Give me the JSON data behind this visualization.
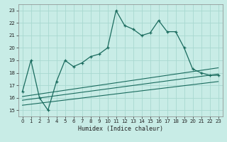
{
  "title": "",
  "xlabel": "Humidex (Indice chaleur)",
  "background_color": "#c8ece6",
  "grid_color": "#a8d8d0",
  "line_color": "#1a6b5e",
  "xlim": [
    -0.5,
    23.5
  ],
  "ylim": [
    14.5,
    23.5
  ],
  "yticks": [
    15,
    16,
    17,
    18,
    19,
    20,
    21,
    22,
    23
  ],
  "xticks": [
    0,
    1,
    2,
    3,
    4,
    5,
    6,
    7,
    8,
    9,
    10,
    11,
    12,
    13,
    14,
    15,
    16,
    17,
    18,
    19,
    20,
    21,
    22,
    23
  ],
  "main_x": [
    0,
    1,
    2,
    3,
    4,
    5,
    6,
    7,
    8,
    9,
    10,
    11,
    12,
    13,
    14,
    15,
    16,
    17,
    18,
    19,
    20,
    21,
    22,
    23
  ],
  "main_y": [
    16.5,
    19.0,
    16.0,
    15.0,
    17.3,
    19.0,
    18.5,
    18.8,
    19.3,
    19.5,
    20.0,
    23.0,
    21.8,
    21.5,
    21.0,
    21.2,
    22.2,
    21.3,
    21.3,
    20.0,
    18.3,
    18.0,
    17.8,
    17.8
  ],
  "line1_x": [
    0,
    23
  ],
  "line1_y": [
    16.1,
    18.4
  ],
  "line2_x": [
    0,
    23
  ],
  "line2_y": [
    15.8,
    17.9
  ],
  "line3_x": [
    0,
    23
  ],
  "line3_y": [
    15.4,
    17.3
  ],
  "xlabel_fontsize": 6,
  "tick_fontsize": 5
}
